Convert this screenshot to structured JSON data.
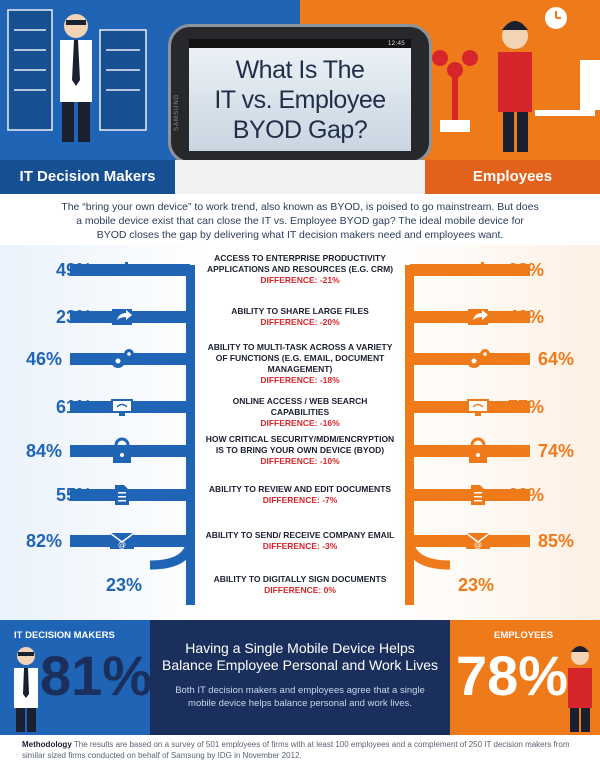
{
  "header": {
    "phone_status_time": "12:45",
    "phone_brand": "SAMSUNG",
    "title_lines": [
      "What Is The",
      "IT vs. Employee",
      "BYOD Gap?"
    ],
    "left_label": "IT Decision Makers",
    "right_label": "Employees"
  },
  "intro": "The “bring your own device” to work trend, also known as BYOD, is poised to go mainstream. But does a mobile device exist that can close the IT vs. Employee BYOD gap? The ideal mobile device for BYOD closes the gap by delivering what IT decision makers need and employees want.",
  "colors": {
    "it_blue": "#1f64b5",
    "employee_orange": "#ef7a1a",
    "difference_red": "#d7262b",
    "navy": "#1b2f5c"
  },
  "metrics": [
    {
      "label": "ACCESS TO ENTERPRISE PRODUCTIVITY APPLICATIONS AND RESOURCES (E.G. CRM)",
      "diff": "DIFFERENCE: -21%",
      "it": "49%",
      "emp": "28%",
      "icon": "bar-chart-icon"
    },
    {
      "label": "ABILITY TO SHARE LARGE FILES",
      "diff": "DIFFERENCE: -20%",
      "it": "23%",
      "emp": "43%",
      "icon": "share-arrow-icon"
    },
    {
      "label": "ABILITY TO MULTI-TASK ACROSS A VARIETY OF FUNCTIONS (E.G. EMAIL, DOCUMENT MANAGEMENT)",
      "diff": "DIFFERENCE: -18%",
      "it": "46%",
      "emp": "64%",
      "icon": "gears-icon"
    },
    {
      "label": "ONLINE ACCESS / WEB SEARCH CAPABILITIES",
      "diff": "DIFFERENCE: -16%",
      "it": "61%",
      "emp": "77%",
      "icon": "wifi-monitor-icon"
    },
    {
      "label": "HOW CRITICAL SECURITY/MDM/ENCRYPTION IS TO BRING YOUR OWN DEVICE (BYOD)",
      "diff": "DIFFERENCE: -10%",
      "it": "84%",
      "emp": "74%",
      "icon": "padlock-icon"
    },
    {
      "label": "ABILITY TO REVIEW AND EDIT DOCUMENTS",
      "diff": "DIFFERENCE: -7%",
      "it": "55%",
      "emp": "62%",
      "icon": "document-icon"
    },
    {
      "label": "ABILITY TO SEND/ RECEIVE COMPANY EMAIL",
      "diff": "DIFFERENCE: -3%",
      "it": "82%",
      "emp": "85%",
      "icon": "envelope-icon"
    },
    {
      "label": "ABILITY TO DIGITALLY SIGN DOCUMENTS",
      "diff": "DIFFERENCE: 0%",
      "it": "23%",
      "emp": "23%",
      "icon": "pen-signature-icon"
    }
  ],
  "bottom": {
    "left_caption": "IT DECISION MAKERS",
    "left_value": "81%",
    "mid_title": "Having a Single Mobile Device Helps Balance Employee Personal and Work Lives",
    "mid_text": "Both IT decision makers and employees agree that a single mobile device helps balance personal and work lives.",
    "right_caption": "EMPLOYEES",
    "right_value": "78%"
  },
  "methodology": {
    "heading": "Methodology",
    "text": "The results are based on a survey of 501 employees of firms with at least 100 employees and a complement of 250 IT decision makers from similar sized firms conducted on behalf of Samsung by IDG in November 2012."
  }
}
